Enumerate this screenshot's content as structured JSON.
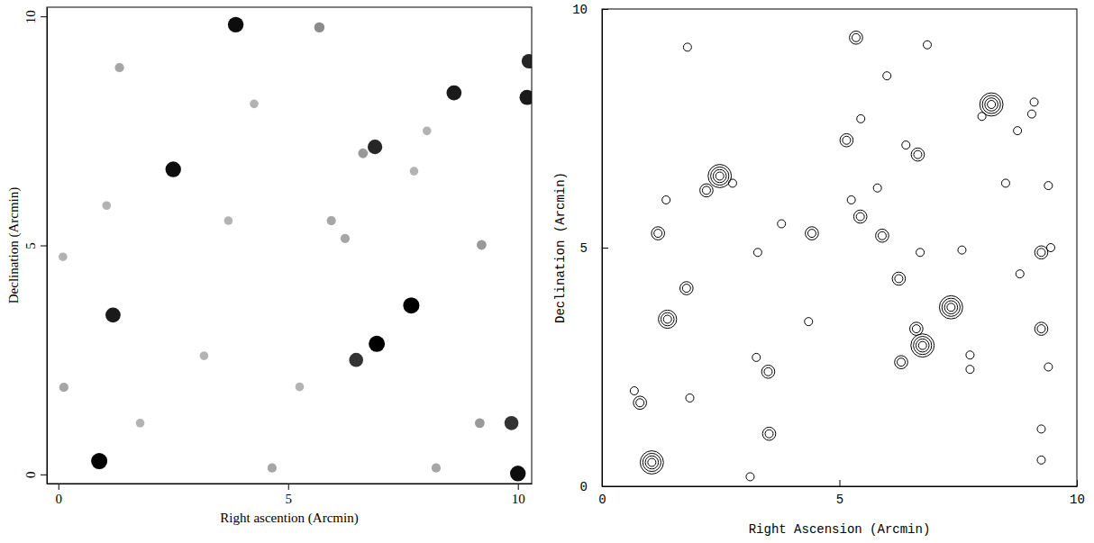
{
  "chart_data": [
    {
      "type": "image",
      "xlabel": "Right ascention (Arcmin)",
      "ylabel": "Declination (Arcmin)",
      "xlim": [
        -0.25,
        10.3
      ],
      "ylim": [
        -0.2,
        10.2
      ],
      "xticks": [
        0,
        5,
        10
      ],
      "yticks": [
        0,
        5,
        10
      ],
      "color": "#000000",
      "x": [
        3.86,
        2.5,
        1.19,
        0.89,
        7.68,
        6.93,
        6.48,
        8.61,
        10.2,
        10.24,
        6.89,
        10.0,
        9.86,
        5.68,
        6.63,
        1.33,
        4.26,
        1.05,
        5.94,
        6.24,
        8.02,
        9.21,
        3.17,
        5.25,
        1.78,
        4.65,
        8.22,
        9.17,
        0.12,
        0.1,
        3.7,
        7.74
      ],
      "y": [
        9.82,
        6.66,
        3.48,
        0.29,
        3.69,
        2.85,
        2.5,
        8.33,
        8.23,
        9.02,
        7.15,
        0.02,
        1.12,
        9.76,
        7.01,
        8.88,
        8.09,
        5.87,
        5.54,
        5.15,
        7.5,
        5.01,
        2.59,
        1.91,
        1.12,
        0.14,
        0.14,
        1.12,
        1.9,
        4.75,
        5.54,
        6.62
      ],
      "intensity": [
        0.95,
        0.95,
        0.9,
        1,
        1,
        1,
        0.8,
        0.9,
        0.9,
        0.85,
        0.85,
        0.95,
        0.8,
        0.45,
        0.4,
        0.35,
        0.3,
        0.3,
        0.35,
        0.35,
        0.3,
        0.4,
        0.3,
        0.3,
        0.3,
        0.35,
        0.35,
        0.4,
        0.35,
        0.3,
        0.3,
        0.3
      ]
    },
    {
      "type": "contour",
      "xlabel": "Right Ascension (Arcmin)",
      "ylabel": "Declination (Arcmin)",
      "xlim": [
        0,
        10
      ],
      "ylim": [
        0,
        10
      ],
      "xticks": [
        0,
        5,
        10
      ],
      "yticks": [
        0,
        5,
        10
      ],
      "color": "#000000",
      "marker": "circle",
      "x": [
        1.8,
        5.35,
        6.85,
        6.0,
        8.2,
        9.1,
        9.05,
        8.0,
        8.75,
        5.45,
        5.15,
        6.4,
        6.65,
        5.8,
        5.25,
        2.48,
        2.2,
        2.75,
        1.35,
        8.5,
        9.4,
        5.44,
        3.78,
        5.9,
        4.42,
        1.18,
        9.45,
        9.25,
        7.58,
        3.28,
        6.7,
        6.25,
        8.8,
        1.78,
        7.35,
        1.38,
        4.35,
        6.62,
        9.25,
        6.75,
        6.3,
        7.75,
        7.75,
        3.25,
        3.5,
        9.4,
        0.68,
        0.8,
        1.85,
        3.52,
        9.25,
        9.25,
        3.12,
        1.05
      ],
      "y": [
        9.2,
        9.4,
        9.25,
        8.6,
        8.0,
        8.05,
        7.8,
        7.75,
        7.45,
        7.7,
        7.25,
        7.15,
        6.95,
        6.25,
        6.0,
        6.5,
        6.2,
        6.35,
        6.0,
        6.35,
        6.3,
        5.65,
        5.5,
        5.25,
        5.3,
        5.3,
        5.0,
        4.9,
        4.95,
        4.9,
        4.9,
        4.35,
        4.45,
        4.15,
        3.75,
        3.5,
        3.45,
        3.3,
        3.3,
        2.95,
        2.6,
        2.75,
        2.45,
        2.7,
        2.4,
        2.5,
        2.0,
        1.75,
        1.85,
        1.1,
        1.2,
        0.55,
        0.2,
        0.5
      ],
      "levels": [
        1,
        2,
        1,
        1,
        4,
        1,
        1,
        1,
        1,
        1,
        2,
        1,
        2,
        1,
        1,
        4,
        2,
        1,
        1,
        1,
        1,
        2,
        1,
        2,
        2,
        2,
        1,
        2,
        1,
        1,
        1,
        2,
        1,
        2,
        4,
        3,
        1,
        2,
        2,
        4,
        2,
        1,
        1,
        1,
        2,
        1,
        1,
        2,
        1,
        2,
        1,
        1,
        1,
        4
      ]
    }
  ]
}
